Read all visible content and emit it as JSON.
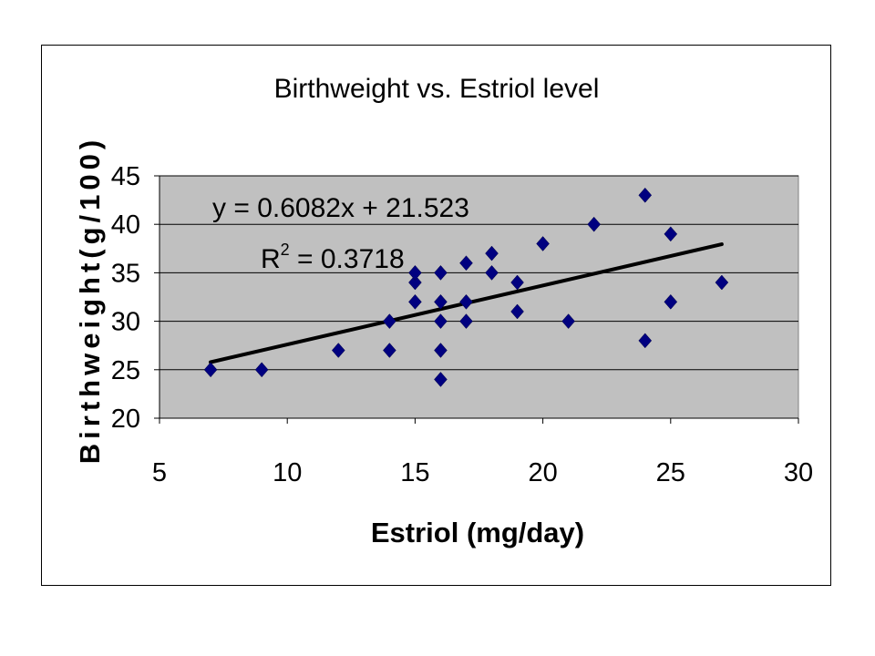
{
  "chart_data": {
    "type": "scatter",
    "title": "Birthweight vs. Estriol level",
    "xlabel": "Estriol (mg/day)",
    "ylabel": "Birthweight(g/100)",
    "xlim": [
      5,
      30
    ],
    "ylim": [
      20,
      45
    ],
    "xticks": [
      5,
      10,
      15,
      20,
      25,
      30
    ],
    "yticks": [
      20,
      25,
      30,
      35,
      40,
      45
    ],
    "grid": "horizontal",
    "plot_background": "#c0c0c0",
    "marker": "diamond",
    "marker_color": "#000080",
    "trendline_color": "#000000",
    "points": [
      {
        "x": 7,
        "y": 25
      },
      {
        "x": 9,
        "y": 25
      },
      {
        "x": 12,
        "y": 27
      },
      {
        "x": 14,
        "y": 27
      },
      {
        "x": 14,
        "y": 30
      },
      {
        "x": 15,
        "y": 32
      },
      {
        "x": 15,
        "y": 34
      },
      {
        "x": 15,
        "y": 35
      },
      {
        "x": 16,
        "y": 24
      },
      {
        "x": 16,
        "y": 27
      },
      {
        "x": 16,
        "y": 30
      },
      {
        "x": 16,
        "y": 32
      },
      {
        "x": 16,
        "y": 35
      },
      {
        "x": 17,
        "y": 30
      },
      {
        "x": 17,
        "y": 32
      },
      {
        "x": 17,
        "y": 36
      },
      {
        "x": 18,
        "y": 35
      },
      {
        "x": 18,
        "y": 37
      },
      {
        "x": 19,
        "y": 31
      },
      {
        "x": 19,
        "y": 34
      },
      {
        "x": 20,
        "y": 38
      },
      {
        "x": 21,
        "y": 30
      },
      {
        "x": 22,
        "y": 40
      },
      {
        "x": 24,
        "y": 28
      },
      {
        "x": 24,
        "y": 43
      },
      {
        "x": 25,
        "y": 32
      },
      {
        "x": 25,
        "y": 39
      },
      {
        "x": 27,
        "y": 34
      }
    ],
    "trendline": {
      "type": "linear",
      "slope": 0.6082,
      "intercept": 21.523,
      "x_range": [
        7,
        27
      ]
    },
    "annotations": {
      "equation": "y = 0.6082x + 21.523",
      "r2_prefix": "R",
      "r2_sup": "2",
      "r2_value": " = 0.3718"
    }
  }
}
